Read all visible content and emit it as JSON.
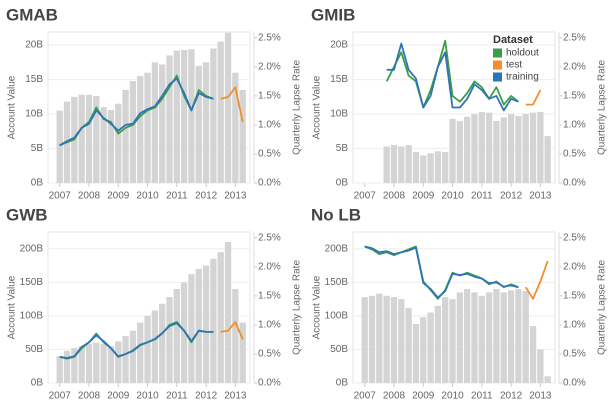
{
  "chart_data": [
    {
      "type": "combo",
      "title": "GMAB",
      "ylabel": "Account Value",
      "y2label": "Quarterly Lapse Rate",
      "x": [
        2007,
        2007.25,
        2007.5,
        2007.75,
        2008,
        2008.25,
        2008.5,
        2008.75,
        2009,
        2009.25,
        2009.5,
        2009.75,
        2010,
        2010.25,
        2010.5,
        2010.75,
        2011,
        2011.25,
        2011.5,
        2011.75,
        2012,
        2012.25,
        2012.5,
        2012.75,
        2013,
        2013.25
      ],
      "xlim": [
        2006.6,
        2013.5
      ],
      "xticks": [
        2007,
        2008,
        2009,
        2010,
        2011,
        2012,
        2013
      ],
      "ylim": [
        0,
        21.9
      ],
      "yticks": [
        {
          "value": 0,
          "label": "0B"
        },
        {
          "value": 5,
          "label": "5B"
        },
        {
          "value": 10,
          "label": "10B"
        },
        {
          "value": 15,
          "label": "15B"
        },
        {
          "value": 20,
          "label": "20B"
        }
      ],
      "y2lim": [
        0,
        2.6
      ],
      "y2ticks": [
        {
          "value": 0,
          "label": "0.0%"
        },
        {
          "value": 0.5,
          "label": "0.5%"
        },
        {
          "value": 1,
          "label": "1.0%"
        },
        {
          "value": 1.5,
          "label": "1.5%"
        },
        {
          "value": 2,
          "label": "2.0%"
        },
        {
          "value": 2.5,
          "label": "2.5%"
        }
      ],
      "bars": {
        "color": "#d4d4d4",
        "values": [
          10.5,
          11.8,
          12.5,
          12.8,
          12.8,
          12.6,
          11,
          10.6,
          11.5,
          13.5,
          14.8,
          15.5,
          16,
          17.5,
          17.2,
          18.5,
          19.2,
          19.3,
          19.4,
          17,
          17.5,
          19.5,
          20.5,
          21.8,
          16,
          13.5
        ]
      },
      "series": [
        {
          "color": "#3a9e47",
          "axis": "y2",
          "values": [
            0.65,
            0.7,
            0.75,
            0.95,
            1.05,
            1.3,
            1.1,
            1.05,
            0.85,
            0.95,
            1.0,
            1.15,
            1.25,
            1.3,
            1.45,
            1.65,
            1.85,
            1.5,
            1.25,
            1.6,
            1.5,
            1.45,
            null,
            null,
            null,
            null
          ]
        },
        {
          "color": "#f28e2b",
          "axis": "y2",
          "values": [
            null,
            null,
            null,
            null,
            null,
            null,
            null,
            null,
            null,
            null,
            null,
            null,
            null,
            null,
            null,
            null,
            null,
            null,
            null,
            null,
            null,
            null,
            1.45,
            1.48,
            1.65,
            1.05
          ]
        },
        {
          "color": "#2f74b5",
          "axis": "y2",
          "values": [
            0.65,
            0.72,
            0.78,
            0.95,
            1.02,
            1.25,
            1.12,
            1.02,
            0.9,
            1.0,
            1.02,
            1.2,
            1.27,
            1.32,
            1.5,
            1.7,
            1.8,
            1.55,
            1.25,
            1.55,
            1.48,
            1.45,
            null,
            null,
            null,
            null
          ]
        }
      ]
    },
    {
      "type": "combo",
      "title": "GMIB",
      "ylabel": "Account Value",
      "y2label": "Quarterly Lapse Rate",
      "legend": "upper right",
      "legend_title": "Dataset",
      "x": [
        2007,
        2007.25,
        2007.5,
        2007.75,
        2008,
        2008.25,
        2008.5,
        2008.75,
        2009,
        2009.25,
        2009.5,
        2009.75,
        2010,
        2010.25,
        2010.5,
        2010.75,
        2011,
        2011.25,
        2011.5,
        2011.75,
        2012,
        2012.25,
        2012.5,
        2012.75,
        2013,
        2013.25
      ],
      "xlim": [
        2006.6,
        2013.5
      ],
      "xticks": [
        2007,
        2008,
        2009,
        2010,
        2011,
        2012,
        2013
      ],
      "ylim": [
        0,
        21.9
      ],
      "yticks": [
        {
          "value": 0,
          "label": "0B"
        },
        {
          "value": 5,
          "label": "5B"
        },
        {
          "value": 10,
          "label": "10B"
        },
        {
          "value": 15,
          "label": "15B"
        },
        {
          "value": 20,
          "label": "20B"
        }
      ],
      "y2lim": [
        0,
        2.6
      ],
      "y2ticks": [
        {
          "value": 0,
          "label": "0.0%"
        },
        {
          "value": 0.5,
          "label": "0.5%"
        },
        {
          "value": 1,
          "label": "1.0%"
        },
        {
          "value": 1.5,
          "label": "1.5%"
        },
        {
          "value": 2,
          "label": "2.0%"
        },
        {
          "value": 2.5,
          "label": "2.5%"
        }
      ],
      "bars": {
        "color": "#d4d4d4",
        "values": [
          null,
          null,
          null,
          5.3,
          5.5,
          5.3,
          5.5,
          4.5,
          4,
          4.3,
          4.6,
          4.5,
          9.3,
          9,
          9.6,
          10,
          10.3,
          10.2,
          9,
          9.5,
          10,
          9.7,
          10,
          10.2,
          10.3,
          6.8
        ]
      },
      "series": [
        {
          "name": "holdout",
          "color": "#3a9e47",
          "axis": "y2",
          "values": [
            null,
            null,
            null,
            1.75,
            2.0,
            2.25,
            1.85,
            1.75,
            1.3,
            1.6,
            2.0,
            2.45,
            1.5,
            1.4,
            1.55,
            1.75,
            1.65,
            1.45,
            1.65,
            1.35,
            1.5,
            1.4,
            null,
            null,
            null,
            null
          ]
        },
        {
          "name": "test",
          "color": "#f28e2b",
          "axis": "y2",
          "values": [
            null,
            null,
            null,
            null,
            null,
            null,
            null,
            null,
            null,
            null,
            null,
            null,
            null,
            null,
            null,
            null,
            null,
            null,
            null,
            null,
            null,
            null,
            1.35,
            1.35,
            1.6,
            null
          ]
        },
        {
          "name": "training",
          "color": "#2f74b5",
          "axis": "y2",
          "values": [
            null,
            null,
            null,
            1.95,
            1.95,
            2.4,
            1.95,
            1.8,
            1.3,
            1.5,
            2.0,
            2.25,
            1.3,
            1.3,
            1.45,
            1.7,
            1.6,
            1.45,
            1.5,
            1.25,
            1.45,
            1.4,
            null,
            null,
            null,
            null
          ]
        }
      ]
    },
    {
      "type": "combo",
      "title": "GWB",
      "ylabel": "Account Value",
      "y2label": "Quarterly Lapse Rate",
      "x": [
        2007,
        2007.25,
        2007.5,
        2007.75,
        2008,
        2008.25,
        2008.5,
        2008.75,
        2009,
        2009.25,
        2009.5,
        2009.75,
        2010,
        2010.25,
        2010.5,
        2010.75,
        2011,
        2011.25,
        2011.5,
        2011.75,
        2012,
        2012.25,
        2012.5,
        2012.75,
        2013,
        2013.25
      ],
      "xlim": [
        2006.6,
        2013.5
      ],
      "xticks": [
        2007,
        2008,
        2009,
        2010,
        2011,
        2012,
        2013
      ],
      "ylim": [
        0,
        225
      ],
      "yticks": [
        {
          "value": 0,
          "label": "0B"
        },
        {
          "value": 50,
          "label": "50B"
        },
        {
          "value": 100,
          "label": "100B"
        },
        {
          "value": 150,
          "label": "150B"
        },
        {
          "value": 200,
          "label": "200B"
        }
      ],
      "y2lim": [
        0,
        2.6
      ],
      "y2ticks": [
        {
          "value": 0,
          "label": "0.0%"
        },
        {
          "value": 0.5,
          "label": "0.5%"
        },
        {
          "value": 1,
          "label": "1.0%"
        },
        {
          "value": 1.5,
          "label": "1.5%"
        },
        {
          "value": 2,
          "label": "2.0%"
        },
        {
          "value": 2.5,
          "label": "2.5%"
        }
      ],
      "bars": {
        "color": "#d4d4d4",
        "values": [
          40,
          48,
          52,
          55,
          58,
          60,
          58,
          55,
          62,
          70,
          78,
          90,
          100,
          108,
          118,
          128,
          140,
          150,
          162,
          170,
          175,
          185,
          195,
          210,
          140,
          90
        ]
      },
      "series": [
        {
          "color": "#3a9e47",
          "axis": "y2",
          "values": [
            0.45,
            0.42,
            0.45,
            0.6,
            0.7,
            0.85,
            0.7,
            0.6,
            0.45,
            0.5,
            0.55,
            0.65,
            0.7,
            0.75,
            0.85,
            1.0,
            1.05,
            0.9,
            0.7,
            0.9,
            0.88,
            0.88,
            null,
            null,
            null,
            null
          ]
        },
        {
          "color": "#f28e2b",
          "axis": "y2",
          "values": [
            null,
            null,
            null,
            null,
            null,
            null,
            null,
            null,
            null,
            null,
            null,
            null,
            null,
            null,
            null,
            null,
            null,
            null,
            null,
            null,
            null,
            null,
            0.88,
            0.9,
            1.05,
            0.75
          ]
        },
        {
          "color": "#2f74b5",
          "axis": "y2",
          "values": [
            0.45,
            0.43,
            0.46,
            0.62,
            0.7,
            0.82,
            0.72,
            0.6,
            0.46,
            0.5,
            0.56,
            0.66,
            0.7,
            0.76,
            0.86,
            0.98,
            1.03,
            0.9,
            0.72,
            0.9,
            0.88,
            0.88,
            null,
            null,
            null,
            null
          ]
        }
      ]
    },
    {
      "type": "combo",
      "title": "No LB",
      "ylabel": "Account Value",
      "y2label": "Quarterly Lapse Rate",
      "x": [
        2007,
        2007.25,
        2007.5,
        2007.75,
        2008,
        2008.25,
        2008.5,
        2008.75,
        2009,
        2009.25,
        2009.5,
        2009.75,
        2010,
        2010.25,
        2010.5,
        2010.75,
        2011,
        2011.25,
        2011.5,
        2011.75,
        2012,
        2012.25,
        2012.5,
        2012.75,
        2013,
        2013.25
      ],
      "xlim": [
        2006.6,
        2013.5
      ],
      "xticks": [
        2007,
        2008,
        2009,
        2010,
        2011,
        2012,
        2013
      ],
      "ylim": [
        0,
        225
      ],
      "yticks": [
        {
          "value": 0,
          "label": "0B"
        },
        {
          "value": 50,
          "label": "50B"
        },
        {
          "value": 100,
          "label": "100B"
        },
        {
          "value": 150,
          "label": "150B"
        },
        {
          "value": 200,
          "label": "200B"
        }
      ],
      "y2lim": [
        0,
        2.6
      ],
      "y2ticks": [
        {
          "value": 0,
          "label": "0.0%"
        },
        {
          "value": 0.5,
          "label": "0.5%"
        },
        {
          "value": 1,
          "label": "1.0%"
        },
        {
          "value": 1.5,
          "label": "1.5%"
        },
        {
          "value": 2,
          "label": "2.0%"
        },
        {
          "value": 2.5,
          "label": "2.5%"
        }
      ],
      "bars": {
        "color": "#d4d4d4",
        "values": [
          128,
          130,
          133,
          130,
          128,
          125,
          112,
          88,
          98,
          105,
          115,
          128,
          125,
          135,
          140,
          135,
          130,
          135,
          140,
          135,
          138,
          140,
          137,
          85,
          50,
          10
        ]
      },
      "series": [
        {
          "color": "#3a9e47",
          "axis": "y2",
          "values": [
            2.35,
            2.3,
            2.22,
            2.25,
            2.2,
            2.25,
            2.3,
            2.35,
            1.75,
            1.6,
            1.45,
            1.6,
            1.9,
            1.85,
            1.9,
            1.85,
            1.8,
            1.7,
            1.75,
            1.65,
            1.7,
            1.65,
            null,
            null,
            null,
            null
          ]
        },
        {
          "color": "#f28e2b",
          "axis": "y2",
          "values": [
            null,
            null,
            null,
            null,
            null,
            null,
            null,
            null,
            null,
            null,
            null,
            null,
            null,
            null,
            null,
            null,
            null,
            null,
            null,
            null,
            null,
            null,
            1.65,
            1.45,
            1.75,
            2.1
          ]
        },
        {
          "color": "#2f74b5",
          "axis": "y2",
          "values": [
            2.35,
            2.32,
            2.25,
            2.27,
            2.22,
            2.25,
            2.28,
            2.33,
            1.72,
            1.62,
            1.47,
            1.58,
            1.88,
            1.86,
            1.88,
            1.83,
            1.8,
            1.72,
            1.73,
            1.66,
            1.68,
            1.65,
            null,
            null,
            null,
            null
          ]
        }
      ]
    }
  ]
}
